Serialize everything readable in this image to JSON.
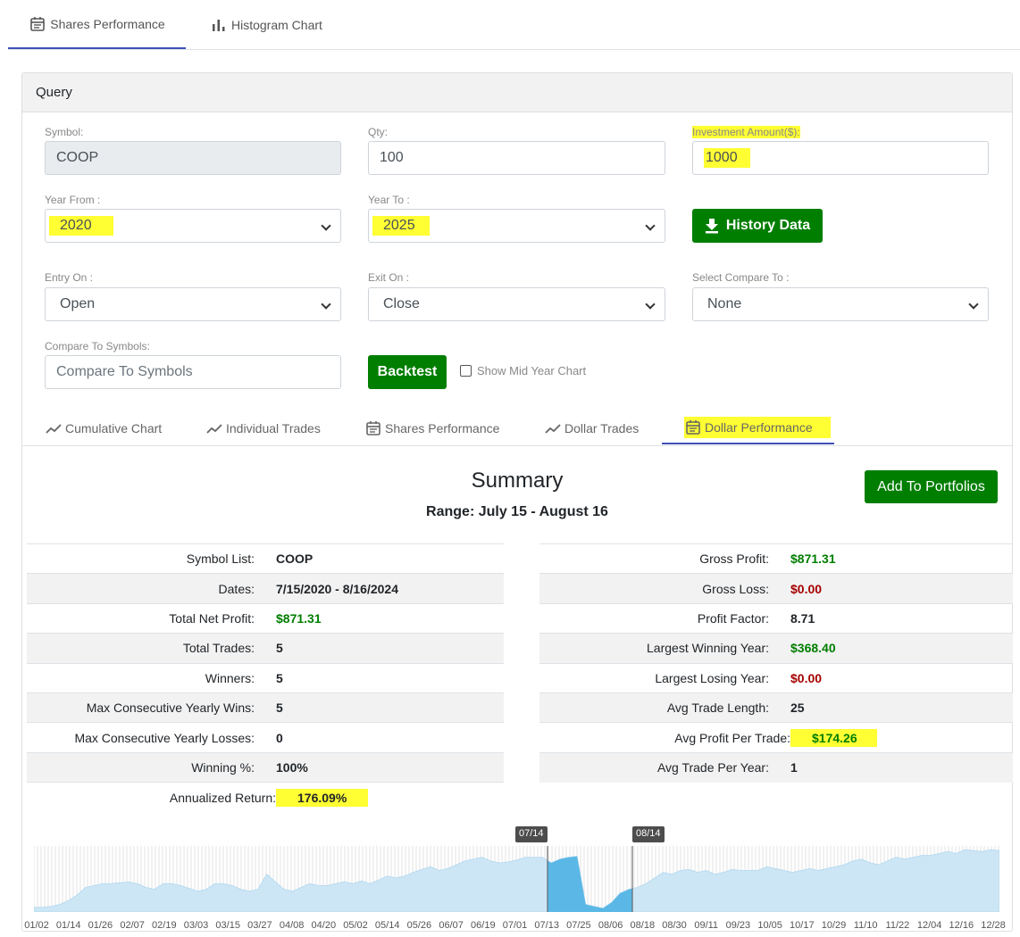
{
  "top_tabs": [
    {
      "label": "Shares Performance",
      "icon": "calendar-icon",
      "active": true
    },
    {
      "label": "Histogram Chart",
      "icon": "bar-chart-icon",
      "active": false
    }
  ],
  "query": {
    "header": "Query",
    "symbol": {
      "label": "Symbol:",
      "value": "COOP"
    },
    "qty": {
      "label": "Qty:",
      "value": "100"
    },
    "investment": {
      "label": "Investment Amount($):",
      "value": "1000"
    },
    "year_from": {
      "label": "Year From :",
      "value": "2020"
    },
    "year_to": {
      "label": "Year To :",
      "value": "2025"
    },
    "history_button": "History Data",
    "entry_on": {
      "label": "Entry On :",
      "value": "Open"
    },
    "exit_on": {
      "label": "Exit On :",
      "value": "Close"
    },
    "compare_to": {
      "label": "Select Compare To :",
      "value": "None"
    },
    "compare_symbols": {
      "label": "Compare To Symbols:",
      "placeholder": "Compare To Symbols"
    },
    "backtest_button": "Backtest",
    "mid_year_checkbox": "Show Mid Year Chart"
  },
  "sub_tabs": [
    {
      "label": "Cumulative Chart",
      "icon": "line-chart-icon"
    },
    {
      "label": "Individual Trades",
      "icon": "line-chart-icon"
    },
    {
      "label": "Shares Performance",
      "icon": "calendar-icon"
    },
    {
      "label": "Dollar Trades",
      "icon": "line-chart-icon"
    },
    {
      "label": "Dollar Performance",
      "icon": "calendar-icon",
      "active": true
    }
  ],
  "summary": {
    "title": "Summary",
    "range": "Range: July 15 - August 16",
    "add_button": "Add To Portfolios",
    "left": [
      {
        "k": "Symbol List:",
        "v": "COOP"
      },
      {
        "k": "Dates:",
        "v": "7/15/2020 - 8/16/2024"
      },
      {
        "k": "Total Net Profit:",
        "v": "$871.31",
        "color": "green"
      },
      {
        "k": "Total Trades:",
        "v": "5"
      },
      {
        "k": "Winners:",
        "v": "5"
      },
      {
        "k": "Max Consecutive Yearly Wins:",
        "v": "5"
      },
      {
        "k": "Max Consecutive Yearly Losses:",
        "v": "0"
      },
      {
        "k": "Winning %:",
        "v": "100%"
      },
      {
        "k": "Annualized Return:",
        "v": "176.09%"
      }
    ],
    "right": [
      {
        "k": "Gross Profit:",
        "v": "$871.31",
        "color": "green"
      },
      {
        "k": "Gross Loss:",
        "v": "$0.00",
        "color": "red"
      },
      {
        "k": "Profit Factor:",
        "v": "8.71"
      },
      {
        "k": "Largest Winning Year:",
        "v": "$368.40",
        "color": "green"
      },
      {
        "k": "Largest Losing Year:",
        "v": "$0.00",
        "color": "red"
      },
      {
        "k": "Avg Trade Length:",
        "v": "25"
      },
      {
        "k": "Avg Profit Per Trade:",
        "v": "$174.26",
        "color": "green"
      },
      {
        "k": "Avg Trade Per Year:",
        "v": "1"
      }
    ]
  },
  "chart_data": {
    "type": "area",
    "x_ticks": [
      "01/02",
      "01/14",
      "01/26",
      "02/07",
      "02/19",
      "03/03",
      "03/15",
      "03/27",
      "04/08",
      "04/20",
      "05/02",
      "05/14",
      "05/26",
      "06/07",
      "06/19",
      "07/01",
      "07/13",
      "07/25",
      "08/06",
      "08/18",
      "08/30",
      "09/11",
      "09/23",
      "10/05",
      "10/17",
      "10/29",
      "11/10",
      "11/22",
      "12/04",
      "12/16",
      "12/28"
    ],
    "highlight_start": "07/14",
    "highlight_end": "08/14",
    "series": [
      {
        "values": [
          5,
          5,
          6,
          8,
          12,
          18,
          26,
          28,
          30,
          30,
          31,
          32,
          30,
          26,
          24,
          30,
          30,
          28,
          25,
          22,
          24,
          30,
          30,
          28,
          24,
          22,
          24,
          40,
          32,
          24,
          22,
          26,
          30,
          28,
          28,
          30,
          32,
          30,
          33,
          30,
          34,
          38,
          36,
          38,
          42,
          45,
          48,
          44,
          46,
          50,
          54,
          56,
          58,
          54,
          52,
          53,
          55,
          58,
          58,
          58,
          52,
          56,
          58,
          59,
          8,
          6,
          4,
          10,
          20,
          24,
          26,
          30,
          36,
          42,
          40,
          44,
          45,
          42,
          44,
          40,
          42,
          45,
          44,
          44,
          44,
          48,
          46,
          44,
          42,
          44,
          46,
          44,
          46,
          48,
          50,
          54,
          56,
          52,
          50,
          54,
          58,
          56,
          58,
          60,
          60,
          62,
          64,
          62,
          66,
          65,
          64,
          66,
          65
        ]
      }
    ]
  }
}
